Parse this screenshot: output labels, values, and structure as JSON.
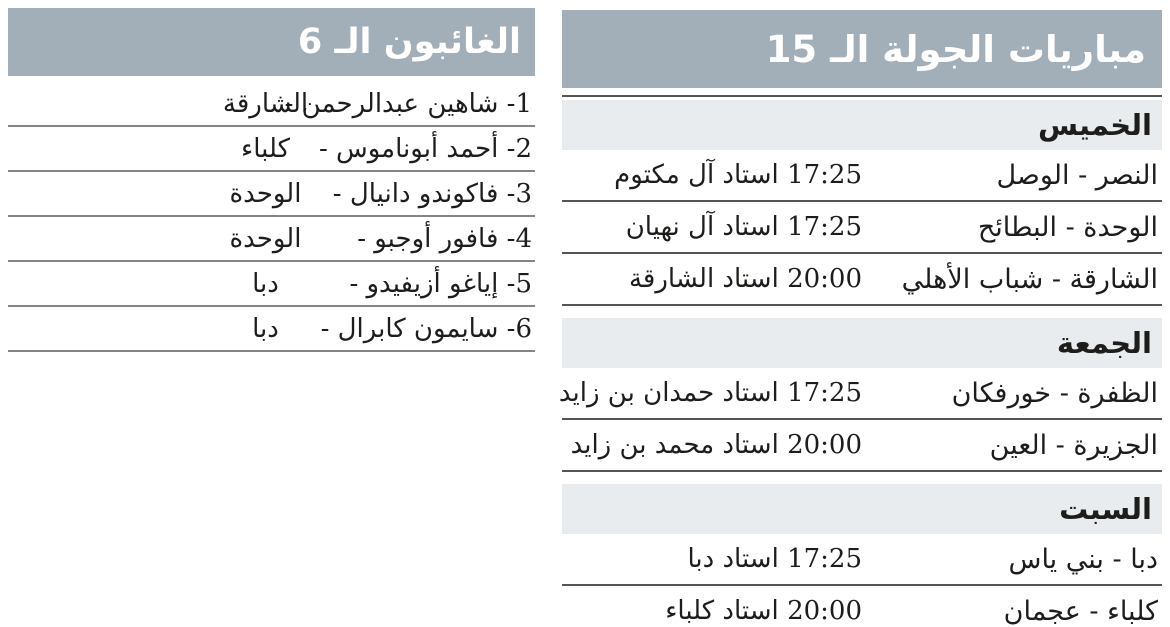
{
  "colors": {
    "header_band_bg": "#a2aeb8",
    "day_band_bg": "#e8ecee",
    "title_color": "#ffffff",
    "body_color": "#1d1d1b",
    "rule_dark": "#545454",
    "rule_light": "#858585"
  },
  "matches_panel": {
    "title": "مباريات الجولة الـ 15",
    "days": [
      {
        "name": "الخميس",
        "matches": [
          {
            "teams": "النصر - الوصل",
            "time": "17:25",
            "venue": "استاد آل مكتوم"
          },
          {
            "teams": "الوحدة - البطائح",
            "time": "17:25",
            "venue": "استاد آل نهيان"
          },
          {
            "teams": "الشارقة - شباب الأهلي",
            "time": "20:00",
            "venue": "استاد الشارقة"
          }
        ]
      },
      {
        "name": "الجمعة",
        "matches": [
          {
            "teams": "الظفرة - خورفكان",
            "time": "17:25",
            "venue": "استاد حمدان بن زايد"
          },
          {
            "teams": "الجزيرة - العين",
            "time": "20:00",
            "venue": "استاد محمد بن زايد"
          }
        ]
      },
      {
        "name": "السبت",
        "matches": [
          {
            "teams": "دبا - بني ياس",
            "time": "17:25",
            "venue": "استاد دبا"
          },
          {
            "teams": "كلباء - عجمان",
            "time": "20:00",
            "venue": "استاد كلباء"
          }
        ]
      }
    ]
  },
  "absentees_panel": {
    "title": "الغائبون الـ 6",
    "players": [
      {
        "number": "1",
        "name": "شاهين عبدالرحمن",
        "club": "الشارقة"
      },
      {
        "number": "2",
        "name": "أحمد أبوناموس",
        "club": "كلباء"
      },
      {
        "number": "3",
        "name": "فاكوندو دانيال",
        "club": "الوحدة"
      },
      {
        "number": "4",
        "name": "فافور أوجبو",
        "club": "الوحدة"
      },
      {
        "number": "5",
        "name": "إياغو أزيفيدو",
        "club": "دبا"
      },
      {
        "number": "6",
        "name": "سايمون كابرال",
        "club": "دبا"
      }
    ]
  }
}
